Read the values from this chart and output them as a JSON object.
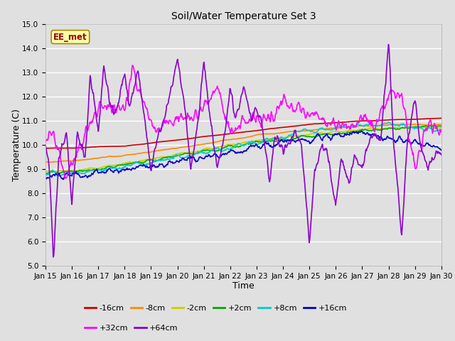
{
  "title": "Soil/Water Temperature Set 3",
  "xlabel": "Time",
  "ylabel": "Temperature (C)",
  "ylim": [
    5.0,
    15.0
  ],
  "yticks": [
    5.0,
    6.0,
    7.0,
    8.0,
    9.0,
    10.0,
    11.0,
    12.0,
    13.0,
    14.0,
    15.0
  ],
  "x_labels": [
    "Jan 15",
    "Jan 16",
    "Jan 17",
    "Jan 18",
    "Jan 19",
    "Jan 20",
    "Jan 21",
    "Jan 22",
    "Jan 23",
    "Jan 24",
    "Jan 25",
    "Jan 26",
    "Jan 27",
    "Jan 28",
    "Jan 29",
    "Jan 30"
  ],
  "bg_color": "#e0e0e0",
  "series": [
    {
      "label": "-16cm",
      "color": "#cc0000",
      "lw": 1.2
    },
    {
      "label": "-8cm",
      "color": "#ff8800",
      "lw": 1.2
    },
    {
      "label": "-2cm",
      "color": "#cccc00",
      "lw": 1.2
    },
    {
      "label": "+2cm",
      "color": "#00aa00",
      "lw": 1.2
    },
    {
      "label": "+8cm",
      "color": "#00cccc",
      "lw": 1.2
    },
    {
      "label": "+16cm",
      "color": "#0000cc",
      "lw": 1.2
    },
    {
      "label": "+32cm",
      "color": "#ff00ff",
      "lw": 1.2
    },
    {
      "label": "+64cm",
      "color": "#8800cc",
      "lw": 1.2
    }
  ],
  "watermark": "EE_met",
  "watermark_color": "#990000",
  "watermark_bg": "#ffffaa",
  "watermark_border": "#aa8800",
  "legend_ncol1": 6,
  "legend_ncol2": 2
}
